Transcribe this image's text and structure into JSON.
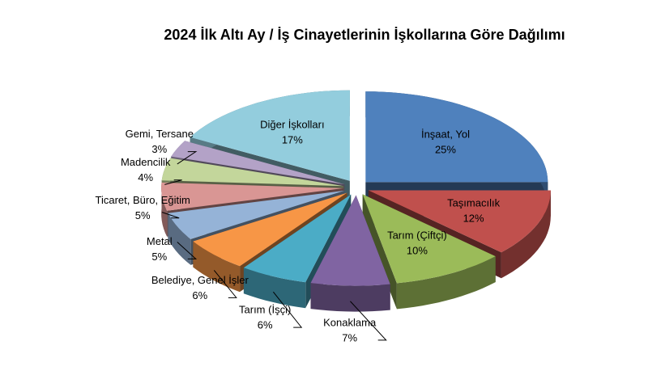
{
  "chart_data": {
    "type": "pie3d",
    "title": "2024 İlk Altı Ay / İş Cinayetlerinin İşkollarına Göre Dağılımı",
    "categories": [
      "İnşaat, Yol",
      "Taşımacılık",
      "Tarım (Çiftçi)",
      "Konaklama",
      "Tarım (İşçi)",
      "Belediye, Genel İşler",
      "Metal",
      "Ticaret, Büro, Eğitim",
      "Madencilik",
      "Gemi, Tersane",
      "Diğer İşkolları"
    ],
    "values": [
      25,
      12,
      10,
      7,
      6,
      6,
      5,
      5,
      4,
      3,
      17
    ],
    "value_labels": [
      "25%",
      "12%",
      "10%",
      "7%",
      "6%",
      "6%",
      "5%",
      "5%",
      "4%",
      "3%",
      "17%"
    ],
    "colors": [
      "#4f81bd",
      "#c0504d",
      "#9bbb59",
      "#8064a2",
      "#4bacc6",
      "#f79646",
      "#95b3d7",
      "#d99694",
      "#c3d69b",
      "#b3a2c7",
      "#93cddd"
    ]
  }
}
